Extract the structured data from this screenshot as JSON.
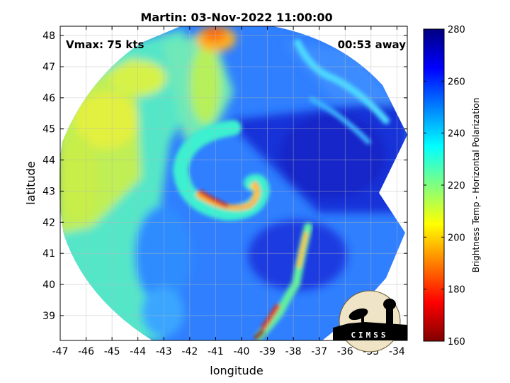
{
  "chart_data": {
    "type": "heatmap",
    "title": "Martin: 03-Nov-2022 11:00:00",
    "xlabel": "longitude",
    "ylabel": "latitude",
    "xlim": [
      -47,
      -33.6
    ],
    "ylim": [
      38.2,
      48.3
    ],
    "xticks": [
      -47,
      -46,
      -45,
      -44,
      -43,
      -42,
      -41,
      -40,
      -39,
      -38,
      -37,
      -36,
      -35,
      -34
    ],
    "yticks": [
      39,
      40,
      41,
      42,
      43,
      44,
      45,
      46,
      47,
      48
    ],
    "grid": true,
    "colorbar": {
      "label": "Brightness Temp - Horizontal Polarization",
      "range": [
        160,
        280
      ],
      "ticks": [
        160,
        180,
        200,
        220,
        240,
        260,
        280
      ],
      "colormap": "jet",
      "placement": "right"
    },
    "storm_center": {
      "lon": -39.6,
      "lat": 42.9
    },
    "annotations": {
      "top_left": "Vmax: 75 kts",
      "top_right": "00:53 away"
    }
  },
  "logo": {
    "text": "CIMSS"
  }
}
